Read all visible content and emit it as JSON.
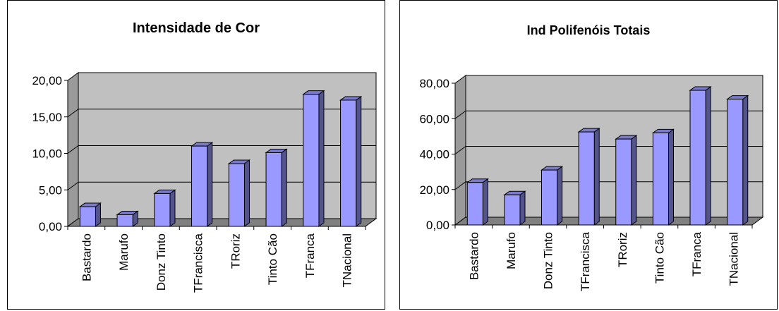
{
  "chart_data": [
    {
      "type": "bar",
      "title": "Intensidade de Cor",
      "categories": [
        "Bastardo",
        "Marufo",
        "Donz Tinto",
        "TFrancisca",
        "TRoriz",
        "Tinto Cão",
        "TFranca",
        "TNacional"
      ],
      "values": [
        2.7,
        1.6,
        4.5,
        11.0,
        8.6,
        10.1,
        18.1,
        17.3
      ],
      "ylim": [
        0,
        20
      ],
      "yticks": [
        "0,00",
        "5,00",
        "10,00",
        "15,00",
        "20,00"
      ],
      "grid": true,
      "bar_color": "#9999ff",
      "plot_color": "#c0c0c0"
    },
    {
      "type": "bar",
      "title": "Ind Polifenóis Totais",
      "categories": [
        "Bastardo",
        "Marufo",
        "Donz Tinto",
        "TFrancisca",
        "TRoriz",
        "Tinto Cão",
        "TFranca",
        "TNacional"
      ],
      "values": [
        24,
        17,
        31,
        52.5,
        48.5,
        52,
        76,
        71
      ],
      "ylim": [
        0,
        80
      ],
      "yticks": [
        "0,00",
        "20,00",
        "40,00",
        "60,00",
        "80,00"
      ],
      "grid": true,
      "bar_color": "#9999ff",
      "plot_color": "#c0c0c0"
    }
  ]
}
